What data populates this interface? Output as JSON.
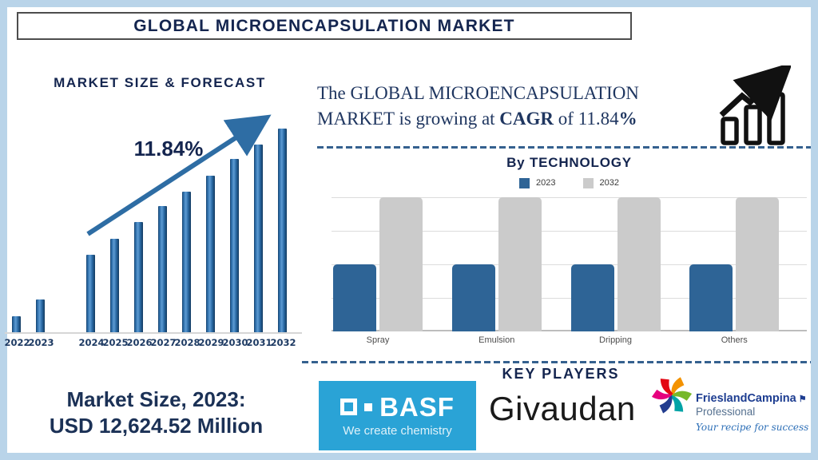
{
  "header": {
    "title": "GLOBAL MICROENCAPSULATION MARKET"
  },
  "forecast": {
    "title": "MARKET SIZE & FORECAST",
    "cagr_label": "11.84%"
  },
  "growth_note": {
    "line1": "The GLOBAL MICROENCAPSULATION",
    "line2_part1": "MARKET is growing at ",
    "line2_bold": "CAGR",
    "line2_part2": " of 11.84",
    "line2_percent": "%"
  },
  "market_size": {
    "line1": "Market Size, 2023:",
    "line2": "USD 12,624.52 Million"
  },
  "technology": {
    "title": "By TECHNOLOGY"
  },
  "key_players": {
    "title": "KEY PLAYERS",
    "logos": [
      {
        "name": "BASF",
        "tagline": "We create chemistry",
        "bg_color": "#2aa3d6"
      },
      {
        "name": "Givaudan"
      },
      {
        "name": "FrieslandCampina",
        "subtitle": "Professional",
        "tagline": "Your recipe for success"
      }
    ]
  },
  "icons": {
    "growth_icon": "growth-bars-arrow-icon",
    "trend_arrow": "rising-trend-arrow-icon",
    "fc_star": "frieslandcampina-star-icon",
    "basf_mark": "basf-squares-icon"
  },
  "colors": {
    "navy_text": "#14254f",
    "frame_blue": "#b9d4e9",
    "forecast_bar_blue": "#2a6aa5",
    "tech_bar_2023": "#2e6496",
    "tech_bar_2032": "#cbcbcb",
    "dashed_line": "#35618f",
    "basf_blue": "#2aa3d6"
  },
  "chart_data": [
    {
      "type": "bar",
      "title": "MARKET SIZE & FORECAST",
      "categories": [
        "2022",
        "2023",
        "2024",
        "2025",
        "2026",
        "2027",
        "2028",
        "2029",
        "2030",
        "2031",
        "2032"
      ],
      "values": [
        8,
        16,
        38,
        46,
        54,
        62,
        69,
        77,
        85,
        92,
        100
      ],
      "values_note": "relative bar heights in % of tallest (2032) bar; chart has no y-axis labels",
      "annotation": "11.84%",
      "xlabel": "",
      "ylabel": "",
      "grid": false,
      "bar_color": "#2a6aa5",
      "gap_after_index": 1
    },
    {
      "type": "bar",
      "title": "By TECHNOLOGY",
      "categories": [
        "Spray",
        "Emulsion",
        "Dripping",
        "Others"
      ],
      "series": [
        {
          "name": "2023",
          "color": "#2e6496",
          "values": [
            50,
            50,
            50,
            50
          ]
        },
        {
          "name": "2032",
          "color": "#cbcbcb",
          "values": [
            100,
            100,
            100,
            100
          ]
        }
      ],
      "values_note": "relative heights in % of plot height; chart has no y-axis labels",
      "ylim": [
        0,
        100
      ],
      "grid": true,
      "legend_position": "top"
    }
  ]
}
